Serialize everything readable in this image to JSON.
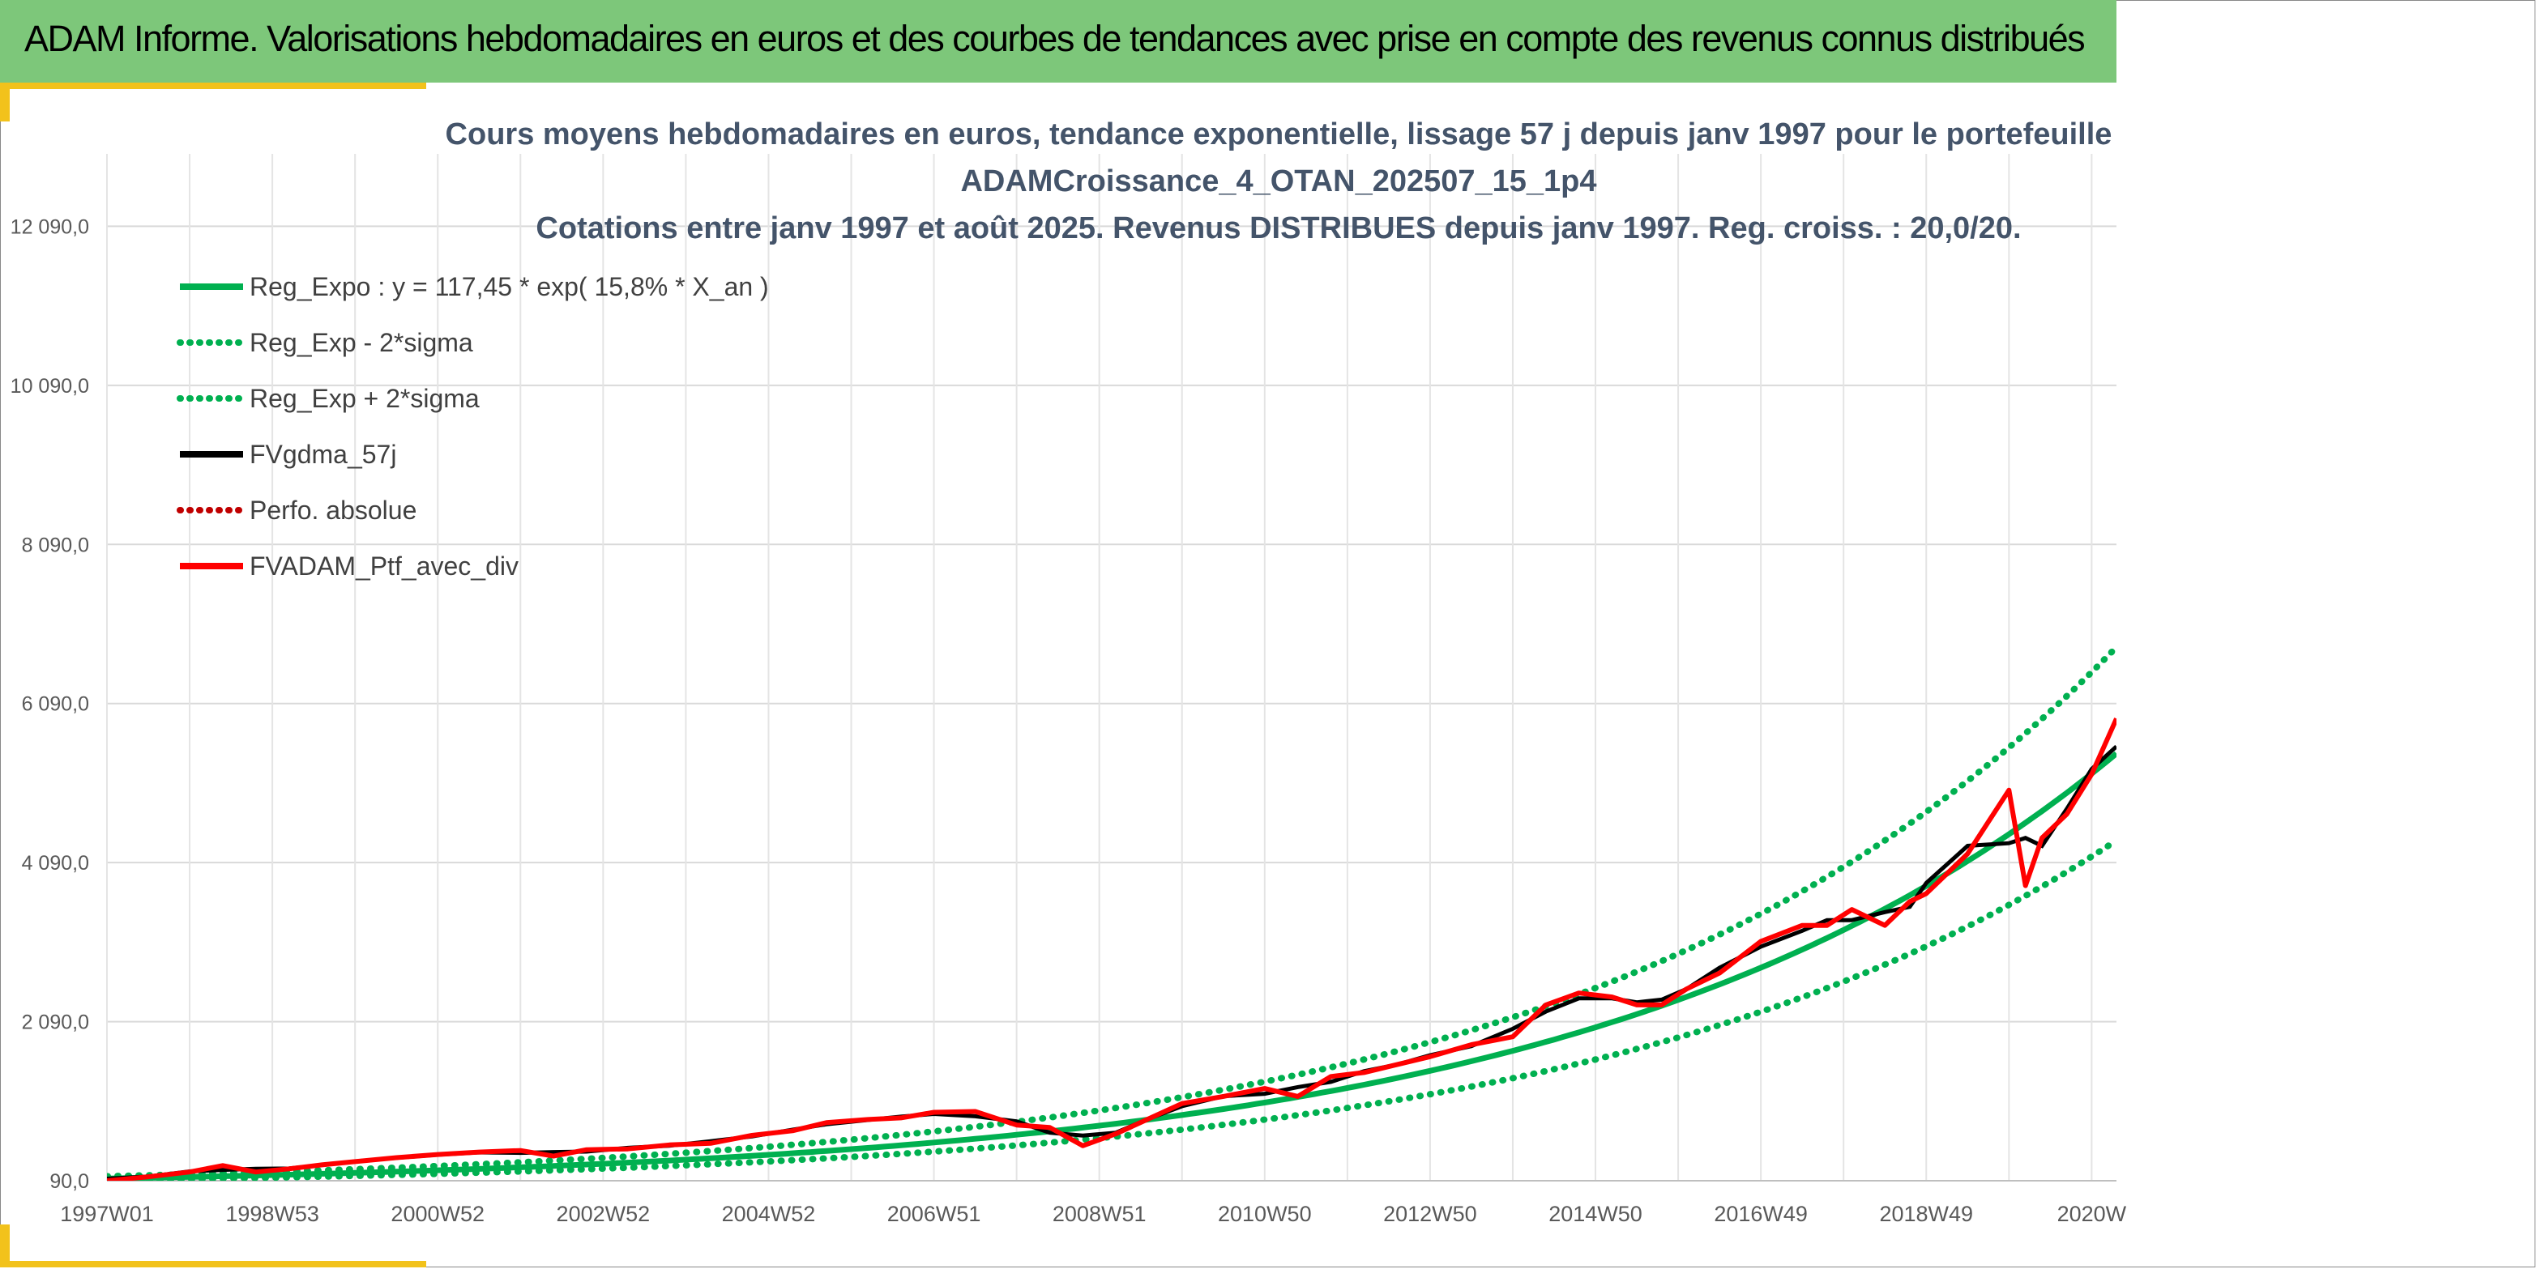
{
  "banner": {
    "title": "ADAM Informe. Valorisations hebdomadaires en euros et des courbes de tendances avec prise en compte des revenus connus distribués"
  },
  "colors": {
    "banner": "#7dc77a",
    "accent": "#f2c21b",
    "regression": "#00b050",
    "smoothed": "#000000",
    "portfolio": "#ff0000"
  },
  "chart_data": {
    "type": "line",
    "title_lines": [
      "Cours moyens hebdomadaires en euros, tendance exponentielle, lissage 57 j depuis janv 1997 pour le portefeuille",
      "ADAMCroissance_4_OTAN_202507_15_1p4",
      "Cotations entre janv 1997 et août 2025. Revenus DISTRIBUES depuis janv 1997. Reg. croiss. : 20,0/20."
    ],
    "x_tick_labels": [
      "1997W01",
      "1998W53",
      "2000W52",
      "2002W52",
      "2004W52",
      "2006W51",
      "2008W51",
      "2010W50",
      "2012W50",
      "2014W50",
      "2016W49",
      "2018W49",
      "2020W"
    ],
    "x_tick_years": [
      1997.0,
      1999.0,
      2001.0,
      2003.0,
      2005.0,
      2007.0,
      2009.0,
      2011.0,
      2013.0,
      2015.0,
      2017.0,
      2019.0,
      2021.0
    ],
    "y_tick_labels": [
      "90,0",
      "2 090,0",
      "4 090,0",
      "6 090,0",
      "8 090,0",
      "10 090,0",
      "12 090,0"
    ],
    "y_tick_values": [
      90,
      2090,
      4090,
      6090,
      8090,
      10090,
      12090
    ],
    "ylim": [
      90,
      13000
    ],
    "xlim_years": [
      1997.0,
      2021.3
    ],
    "grid": true,
    "legend_position": "top-left",
    "legend": [
      {
        "label": "Reg_Expo : y = 117,45 * exp( 15,8% *  X_an )",
        "color": "#00b050",
        "style": "solid"
      },
      {
        "label": "Reg_Exp - 2*sigma",
        "color": "#00b050",
        "style": "dotted"
      },
      {
        "label": "Reg_Exp + 2*sigma",
        "color": "#00b050",
        "style": "dotted"
      },
      {
        "label": "FVgdma_57j",
        "color": "#000000",
        "style": "solid"
      },
      {
        "label": "Perfo. absolue",
        "color": "#c00000",
        "style": "dotted"
      },
      {
        "label": "FVADAM_Ptf_avec_div",
        "color": "#ff0000",
        "style": "solid"
      }
    ],
    "regression": {
      "a": 117.45,
      "b": 0.158,
      "lower_factor": 0.8,
      "upper_factor": 1.245
    },
    "portfolio_series": {
      "x_years": [
        1997.0,
        1997.5,
        1998.0,
        1998.4,
        1998.8,
        1999.2,
        1999.6,
        2000.0,
        2000.5,
        2001.0,
        2001.5,
        2002.0,
        2002.4,
        2002.8,
        2003.3,
        2003.8,
        2004.3,
        2004.8,
        2005.3,
        2005.7,
        2006.2,
        2006.6,
        2007.0,
        2007.5,
        2008.0,
        2008.4,
        2008.8,
        2009.2,
        2009.6,
        2010.0,
        2010.5,
        2011.0,
        2011.4,
        2011.8,
        2012.2,
        2012.6,
        2013.0,
        2013.5,
        2014.0,
        2014.4,
        2014.8,
        2015.2,
        2015.5,
        2015.8,
        2016.1,
        2016.5,
        2017.0,
        2017.5,
        2017.8,
        2018.1,
        2018.5,
        2018.8,
        2019.0,
        2019.5,
        2020.0,
        2020.2,
        2020.4,
        2020.7,
        2021.0,
        2021.3
      ],
      "values": [
        90,
        140,
        200,
        280,
        200,
        240,
        290,
        330,
        380,
        420,
        450,
        470,
        400,
        480,
        490,
        540,
        560,
        660,
        720,
        820,
        860,
        880,
        950,
        960,
        790,
        760,
        530,
        680,
        870,
        1060,
        1150,
        1250,
        1150,
        1400,
        1450,
        1550,
        1650,
        1800,
        1900,
        2300,
        2450,
        2400,
        2300,
        2300,
        2500,
        2700,
        3100,
        3300,
        3300,
        3500,
        3300,
        3600,
        3700,
        4200,
        5000,
        3800,
        4400,
        4700,
        5200,
        5900
      ]
    }
  }
}
